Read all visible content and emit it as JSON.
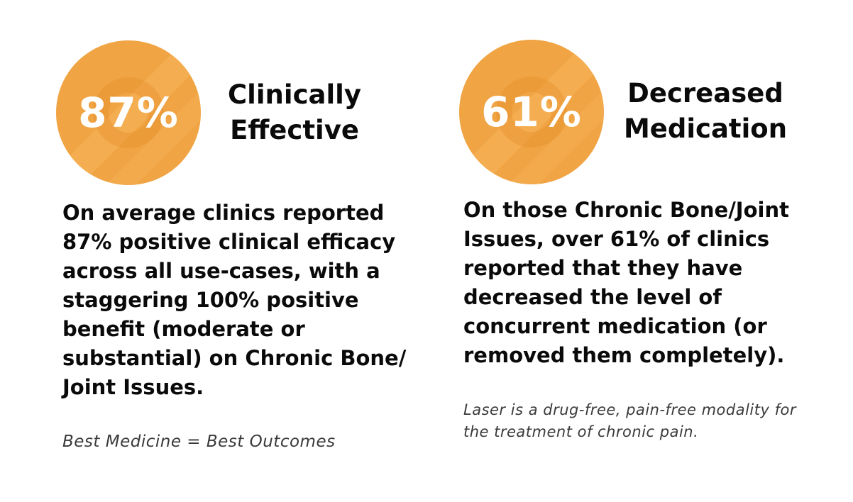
{
  "colors": {
    "badge_fill": "#f0a443",
    "text": "#0a0a0a",
    "note_text": "#3a3a3a"
  },
  "stats": [
    {
      "percent": "87%",
      "headline": "Clinically Effective",
      "body": "On average clinics reported 87% positive clinical efficacy across all use-cases, with a staggering 100% positive benefit (moderate or substantial) on Chronic Bone/ Joint Issues.",
      "note": "Best Medicine = Best Outcomes"
    },
    {
      "percent": "61%",
      "headline": "Decreased Medication",
      "body": "On those Chronic Bone/Joint Issues, over 61% of clinics reported that they have decreased the level of concurrent medication (or removed them completely).",
      "note": "Laser is a drug-free, pain-free modality for the treatment of chronic pain."
    }
  ]
}
